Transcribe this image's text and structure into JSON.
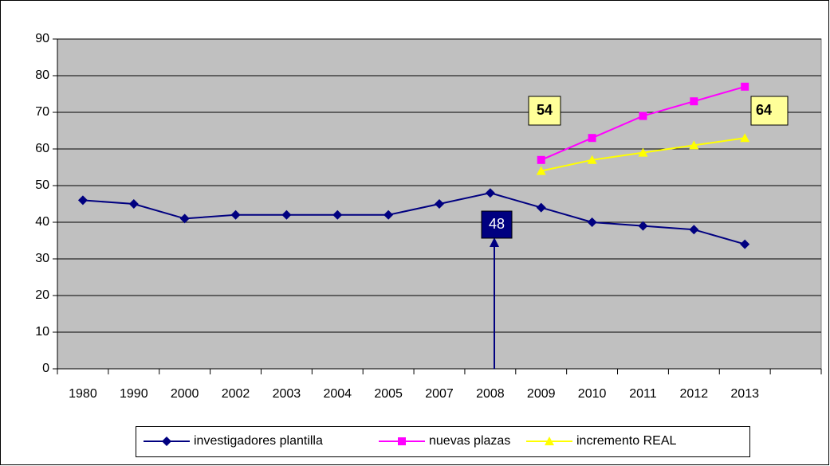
{
  "chart_data": {
    "type": "line",
    "categories": [
      "1980",
      "1990",
      "2000",
      "2002",
      "2003",
      "2004",
      "2005",
      "2007",
      "2008",
      "2009",
      "2010",
      "2011",
      "2012",
      "2013",
      null
    ],
    "series": [
      {
        "name": "investigadores plantilla",
        "color": "#000080",
        "marker": "diamond",
        "values": [
          46,
          45,
          41,
          42,
          42,
          42,
          42,
          45,
          48,
          44,
          40,
          39,
          38,
          34,
          null
        ]
      },
      {
        "name": "nuevas plazas",
        "color": "#ff00ff",
        "marker": "square",
        "values": [
          null,
          null,
          null,
          null,
          null,
          null,
          null,
          null,
          null,
          57,
          63,
          69,
          73,
          77,
          null
        ]
      },
      {
        "name": "incremento REAL",
        "color": "#ffff00",
        "marker": "triangle",
        "values": [
          null,
          null,
          null,
          null,
          null,
          null,
          null,
          null,
          null,
          54,
          57,
          59,
          61,
          63,
          null
        ]
      }
    ],
    "annotations": [
      "54",
      "64",
      "48"
    ],
    "ylim": [
      0,
      90
    ],
    "yticks": [
      0,
      10,
      20,
      30,
      40,
      50,
      60,
      70,
      80,
      90
    ],
    "grid": true,
    "legend": "bottom"
  }
}
